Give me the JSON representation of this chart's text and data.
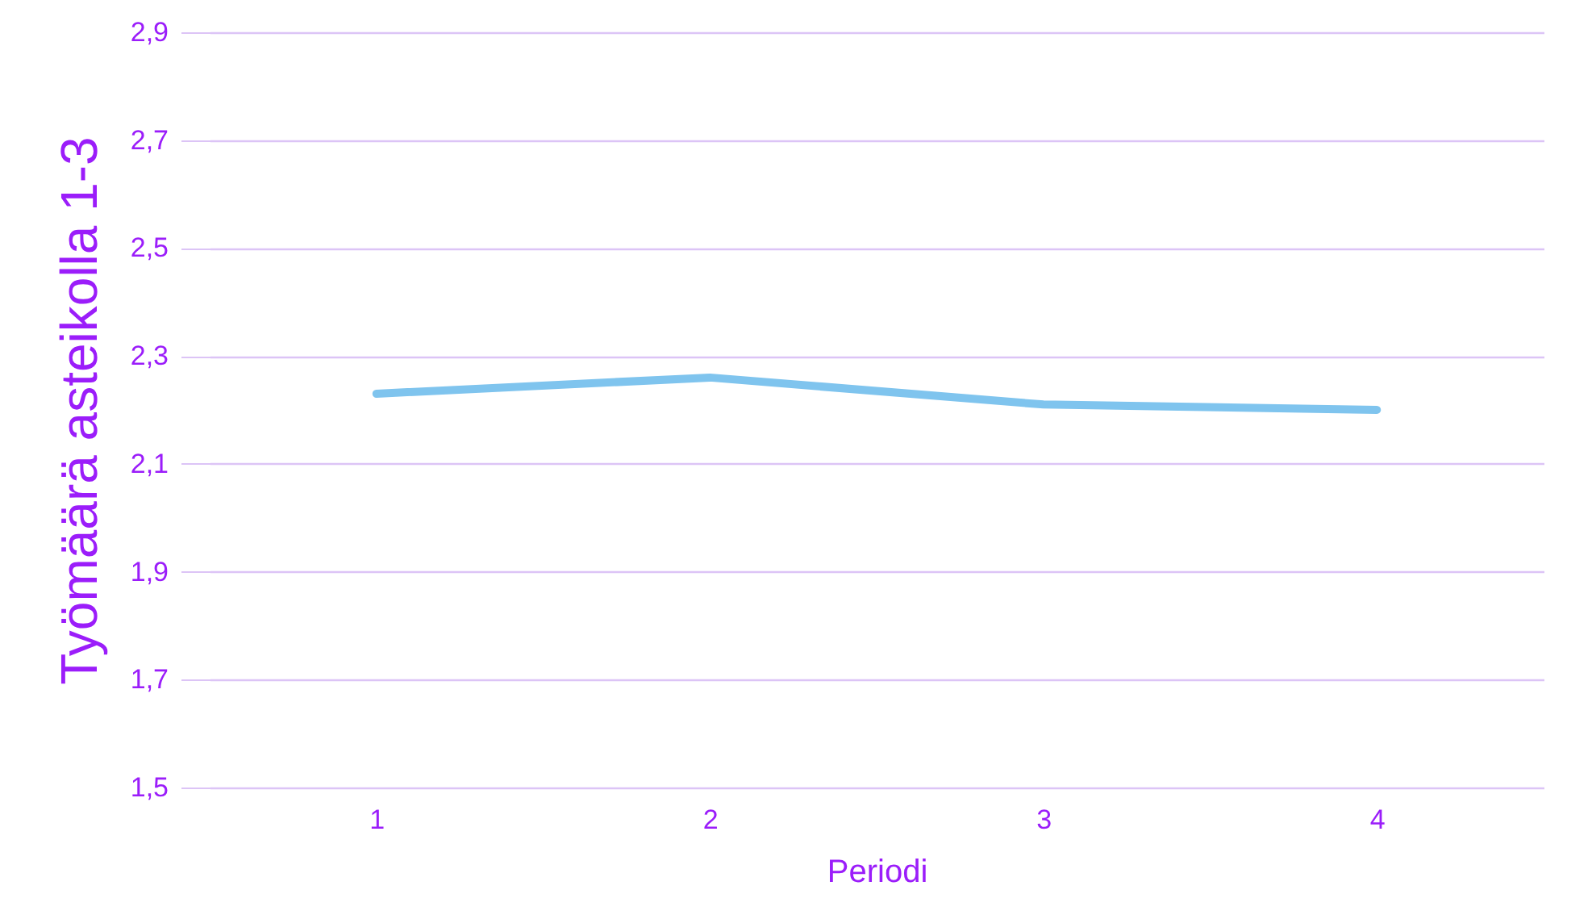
{
  "chart_data": {
    "type": "line",
    "xlabel": "Periodi",
    "ylabel": "Työmäärä asteikolla 1-3",
    "categories": [
      "1",
      "2",
      "3",
      "4"
    ],
    "series": [
      {
        "color": "#7fc4ee",
        "values": [
          2.23,
          2.26,
          2.21,
          2.2
        ]
      }
    ],
    "ylim": [
      1.5,
      2.9
    ],
    "yticks": [
      {
        "value": 1.5,
        "label": "1,5"
      },
      {
        "value": 1.7,
        "label": "1,7"
      },
      {
        "value": 1.9,
        "label": "1,9"
      },
      {
        "value": 2.1,
        "label": "2,1"
      },
      {
        "value": 2.3,
        "label": "2,3"
      },
      {
        "value": 2.5,
        "label": "2,5"
      },
      {
        "value": 2.7,
        "label": "2,7"
      },
      {
        "value": 2.9,
        "label": "2,9"
      }
    ],
    "grid": "y",
    "legend": false,
    "marker": "none",
    "line_style": "solid"
  }
}
